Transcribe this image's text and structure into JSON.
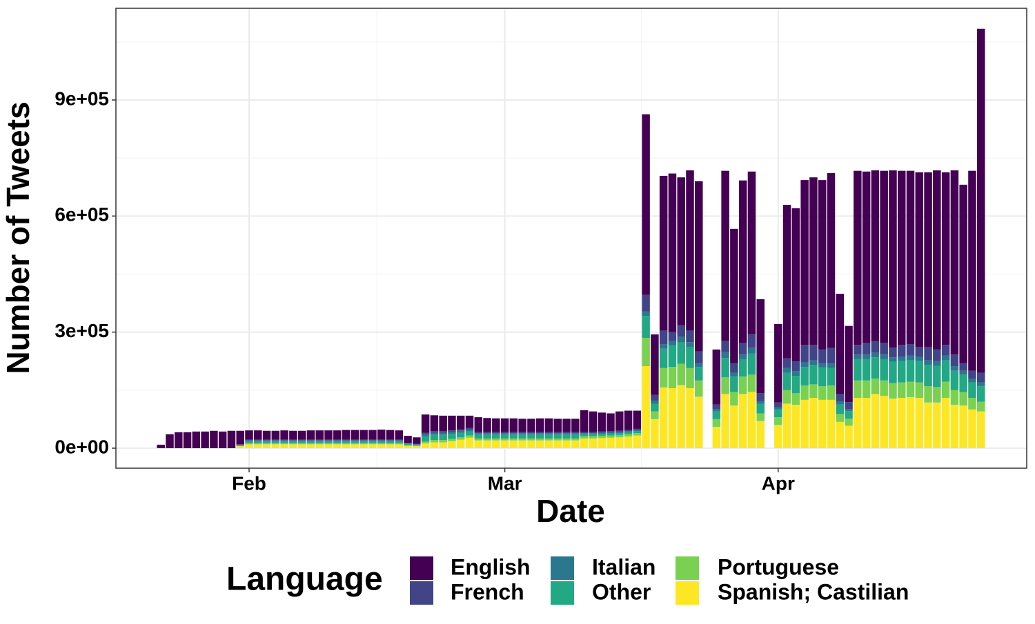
{
  "chart_data": {
    "type": "bar",
    "stacked": true,
    "x_label": "Date",
    "y_label": "Number of Tweets",
    "legend_title": "Language",
    "legend_position": "bottom",
    "grid": true,
    "categories": [
      null,
      null,
      null,
      null,
      null,
      null,
      null,
      null,
      null,
      null,
      "Feb",
      null,
      null,
      null,
      null,
      null,
      null,
      null,
      null,
      null,
      null,
      null,
      null,
      null,
      null,
      null,
      null,
      null,
      null,
      null,
      null,
      null,
      null,
      null,
      null,
      null,
      null,
      null,
      null,
      "Mar",
      null,
      null,
      null,
      null,
      null,
      null,
      null,
      null,
      null,
      null,
      null,
      null,
      null,
      null,
      null,
      null,
      null,
      null,
      null,
      null,
      null,
      null,
      null,
      null,
      null,
      null,
      null,
      null,
      null,
      null,
      "Apr",
      null,
      null,
      null,
      null,
      null,
      null,
      null,
      null,
      null,
      null,
      null,
      null,
      null,
      null,
      null,
      null,
      null,
      null,
      null,
      null,
      null,
      null,
      null
    ],
    "ylim": [
      -51700,
      1137000
    ],
    "yticks": [
      {
        "value": 0,
        "label": "0e+00"
      },
      {
        "value": 300000,
        "label": "3e+05"
      },
      {
        "value": 600000,
        "label": "6e+05"
      },
      {
        "value": 900000,
        "label": "9e+05"
      }
    ],
    "series": [
      {
        "name": "English",
        "color": "#440154",
        "values": [
          9000,
          36000,
          41000,
          41000,
          43000,
          43000,
          45000,
          43000,
          45000,
          35000,
          24000,
          24000,
          23000,
          23000,
          24000,
          23000,
          23000,
          24000,
          24000,
          24000,
          24000,
          25000,
          25000,
          25000,
          25000,
          26000,
          25000,
          24000,
          19000,
          17000,
          47000,
          41000,
          40000,
          38000,
          35000,
          32000,
          38000,
          36000,
          35000,
          35000,
          35000,
          34000,
          34000,
          35000,
          35000,
          34000,
          34000,
          34000,
          56000,
          53000,
          49000,
          46000,
          50000,
          50000,
          47000,
          467000,
          156000,
          400000,
          410000,
          382000,
          414000,
          440000,
          null,
          142000,
          439000,
          347000,
          420000,
          420000,
          243000,
          null,
          203000,
          397000,
          396000,
          426000,
          433000,
          438000,
          452000,
          259000,
          197000,
          450000,
          443000,
          441000,
          445000,
          458000,
          450000,
          448000,
          451000,
          451000,
          463000,
          446000,
          476000,
          461000,
          517000,
          889000
        ]
      },
      {
        "name": "French",
        "color": "#414487",
        "values": [
          0,
          0,
          0,
          0,
          0,
          0,
          0,
          0,
          0,
          1000,
          2000,
          2000,
          2000,
          2000,
          2000,
          2000,
          2000,
          2000,
          2000,
          2000,
          2000,
          2000,
          2000,
          2000,
          2000,
          2000,
          2000,
          2000,
          1000,
          1000,
          4000,
          4000,
          4000,
          4000,
          4000,
          4000,
          3000,
          3000,
          3000,
          3000,
          3000,
          3000,
          3000,
          3000,
          3000,
          3000,
          3000,
          3000,
          3000,
          3000,
          3000,
          3000,
          3000,
          3000,
          3000,
          43000,
          15000,
          35000,
          23000,
          30000,
          30000,
          30000,
          null,
          12000,
          30000,
          25000,
          30000,
          35000,
          20000,
          null,
          12000,
          25000,
          25000,
          45000,
          40000,
          35000,
          40000,
          20000,
          18000,
          25000,
          30000,
          30000,
          30000,
          25000,
          30000,
          30000,
          25000,
          35000,
          30000,
          28000,
          30000,
          20000,
          20000,
          25000
        ]
      },
      {
        "name": "Italian",
        "color": "#2A788E",
        "values": [
          0,
          0,
          0,
          0,
          0,
          0,
          0,
          0,
          0,
          1000,
          2000,
          2000,
          2000,
          2000,
          2000,
          2000,
          2000,
          2000,
          2000,
          2000,
          2000,
          2000,
          2000,
          2000,
          2000,
          2000,
          2000,
          2000,
          1000,
          1000,
          6000,
          5000,
          5000,
          5000,
          5000,
          5000,
          4000,
          4000,
          4000,
          4000,
          4000,
          4000,
          4000,
          4000,
          4000,
          4000,
          4000,
          4000,
          3000,
          3000,
          3000,
          3000,
          3000,
          3000,
          3000,
          11000,
          8000,
          12000,
          12000,
          15000,
          12000,
          10000,
          null,
          6000,
          15000,
          10000,
          12000,
          15000,
          7000,
          null,
          6000,
          12000,
          12000,
          12000,
          12000,
          12000,
          12000,
          7000,
          5000,
          12000,
          12000,
          12000,
          12000,
          12000,
          12000,
          12000,
          12000,
          12000,
          12000,
          12000,
          12000,
          10000,
          10000,
          10000
        ]
      },
      {
        "name": "Other",
        "color": "#22A884",
        "values": [
          0,
          0,
          0,
          0,
          0,
          0,
          0,
          0,
          0,
          2000,
          5000,
          5000,
          5000,
          5000,
          5000,
          5000,
          5000,
          5000,
          5000,
          5000,
          5000,
          5000,
          5000,
          5000,
          5000,
          5000,
          5000,
          5000,
          3000,
          2000,
          13000,
          14000,
          14000,
          13000,
          12000,
          10000,
          10000,
          10000,
          10000,
          10000,
          10000,
          10000,
          10000,
          10000,
          10000,
          10000,
          10000,
          10000,
          5000,
          5000,
          5000,
          5000,
          5000,
          5000,
          5000,
          57000,
          20000,
          50000,
          55000,
          55000,
          55000,
          35000,
          null,
          20000,
          50000,
          40000,
          45000,
          55000,
          25000,
          null,
          20000,
          45000,
          45000,
          48000,
          50000,
          48000,
          45000,
          25000,
          20000,
          55000,
          55000,
          55000,
          55000,
          55000,
          55000,
          55000,
          55000,
          55000,
          55000,
          55000,
          50000,
          45000,
          40000,
          40000
        ]
      },
      {
        "name": "Portuguese",
        "color": "#7AD151",
        "values": [
          0,
          0,
          0,
          0,
          0,
          0,
          0,
          0,
          0,
          1000,
          3000,
          3000,
          3000,
          3000,
          3000,
          3000,
          3000,
          3000,
          3000,
          3000,
          3000,
          3000,
          3000,
          3000,
          3000,
          3000,
          3000,
          3000,
          2000,
          2000,
          5000,
          6000,
          6000,
          6000,
          6000,
          6000,
          5000,
          5000,
          5000,
          5000,
          5000,
          5000,
          5000,
          5000,
          5000,
          5000,
          5000,
          5000,
          6000,
          6000,
          6000,
          6000,
          6000,
          6000,
          6000,
          73000,
          20000,
          50000,
          55000,
          55000,
          52000,
          42000,
          null,
          20000,
          43000,
          35000,
          45000,
          45000,
          20000,
          null,
          20000,
          35000,
          30000,
          37000,
          35000,
          35000,
          37000,
          20000,
          18000,
          45000,
          45000,
          40000,
          40000,
          40000,
          40000,
          40000,
          40000,
          42000,
          40000,
          42000,
          38000,
          35000,
          30000,
          25000
        ]
      },
      {
        "name": "Spanish; Castilian",
        "color": "#FDE725",
        "values": [
          0,
          0,
          0,
          0,
          0,
          0,
          0,
          0,
          0,
          5000,
          10000,
          10000,
          10000,
          10000,
          10000,
          10000,
          10000,
          10000,
          10000,
          10000,
          10000,
          10000,
          10000,
          10000,
          10000,
          10000,
          10000,
          10000,
          6000,
          5000,
          12000,
          15000,
          15000,
          18000,
          22000,
          27000,
          20000,
          20000,
          20000,
          20000,
          20000,
          20000,
          20000,
          20000,
          20000,
          20000,
          20000,
          20000,
          25000,
          25000,
          26000,
          27000,
          28000,
          30000,
          33000,
          212000,
          75000,
          157000,
          155000,
          163000,
          155000,
          133000,
          null,
          55000,
          140000,
          110000,
          140000,
          145000,
          70000,
          null,
          60000,
          115000,
          112000,
          125000,
          130000,
          125000,
          125000,
          68000,
          58000,
          130000,
          130000,
          140000,
          135000,
          128000,
          130000,
          132000,
          130000,
          118000,
          118000,
          130000,
          112000,
          110000,
          100000,
          95000
        ]
      }
    ]
  }
}
